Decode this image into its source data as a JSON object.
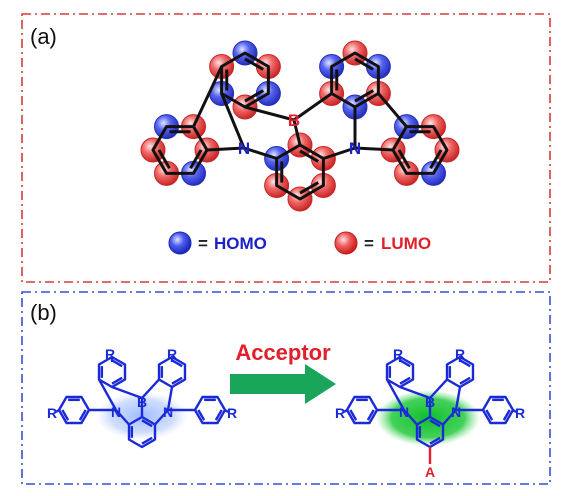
{
  "panel_a": {
    "label": "(a)",
    "atom_B": "B",
    "atom_N_left": "N",
    "atom_N_right": "N",
    "legend": {
      "eq1": "=",
      "homo": "HOMO",
      "eq2": "=",
      "lumo": "LUMO"
    }
  },
  "panel_b": {
    "label": "(b)",
    "arrow_label": "Acceptor",
    "left_molecule": {
      "B": "B",
      "N1": "N",
      "N2": "N",
      "R_top_left": "R",
      "R_top_right": "R",
      "R_left": "R",
      "R_right": "R"
    },
    "right_molecule": {
      "B": "B",
      "N1": "N",
      "N2": "N",
      "R_top_left": "R",
      "R_top_right": "R",
      "R_left": "R",
      "R_right": "R",
      "A": "A"
    }
  },
  "colors": {
    "frame_a": "#d83a3a",
    "frame_b": "#3a4fd8",
    "bond": "#111111",
    "B_atom": "#e0202a",
    "N_atom": "#1a22c8",
    "homo": "#2a35d6",
    "lumo": "#e02a2a",
    "molecule_blue": "#1b2ad8",
    "acceptor_red": "#e0202a",
    "arrow_green": "#1aa65a",
    "homo_cloud": "#7aa0f0",
    "lumo_cloud": "#1fbf3a"
  }
}
